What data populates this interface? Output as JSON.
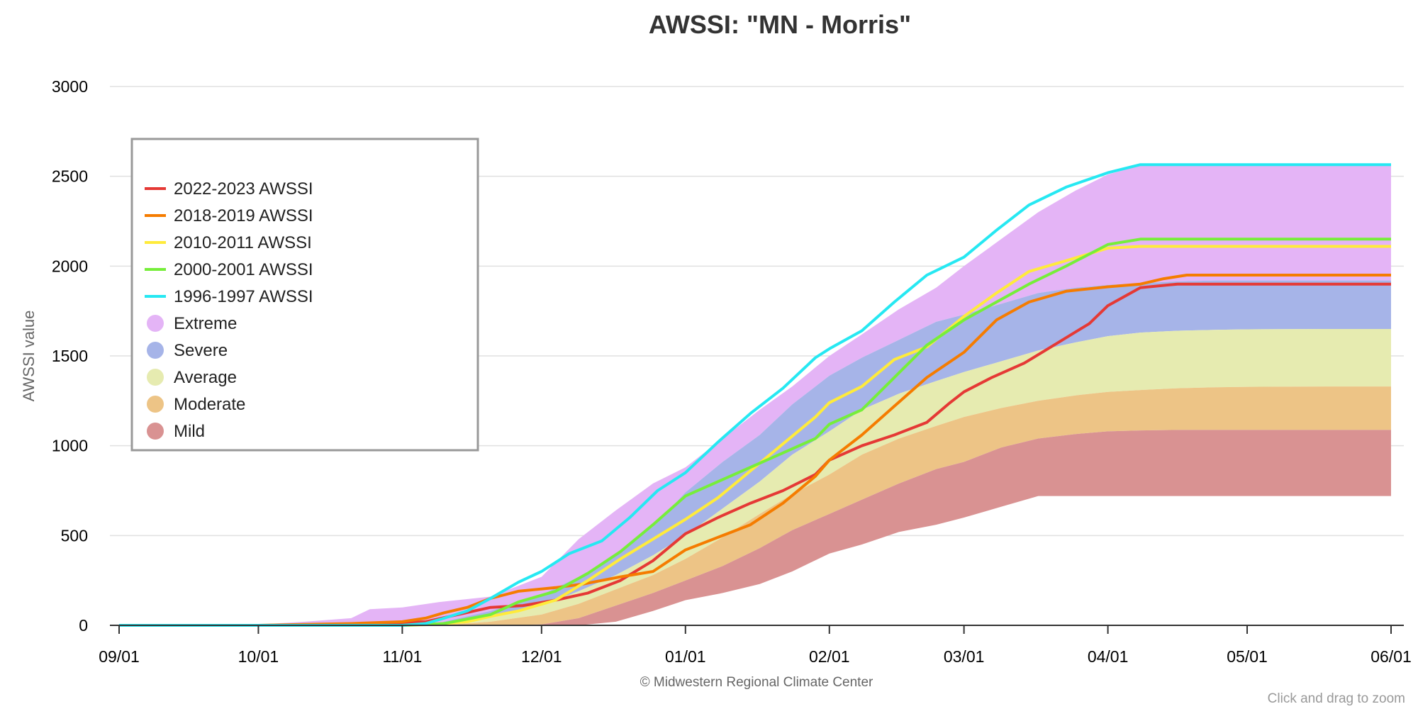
{
  "chart_data": {
    "type": "area",
    "title": "AWSSI: \"MN - Morris\"",
    "ylabel": "AWSSI value",
    "xlabel": "",
    "x_ticks": [
      "09/01",
      "10/01",
      "11/01",
      "12/01",
      "01/01",
      "02/01",
      "03/01",
      "04/01",
      "05/01",
      "06/01"
    ],
    "x_tick_days": [
      0,
      30,
      61,
      91,
      122,
      153,
      182,
      213,
      243,
      274
    ],
    "y_ticks": [
      0,
      500,
      1000,
      1500,
      2000,
      2500,
      3000
    ],
    "ylim": [
      0,
      3000
    ],
    "xlim_days": [
      0,
      274
    ],
    "grid": "horizontal",
    "legend_position": "upper-left",
    "credit": "© Midwestern Regional Climate Center",
    "zoom_hint": "Click and drag to zoom",
    "bands": [
      {
        "name": "Extreme",
        "color": "#e4b4f6",
        "x": [
          0,
          30,
          40,
          50,
          54,
          61,
          69,
          80,
          91,
          99,
          107,
          115,
          122,
          130,
          138,
          145,
          153,
          160,
          168,
          176,
          182,
          190,
          198,
          206,
          213,
          220,
          228,
          236,
          243,
          260,
          274
        ],
        "lower": [
          0,
          0,
          0,
          0,
          0,
          0,
          15,
          80,
          170,
          270,
          390,
          550,
          740,
          910,
          1060,
          1230,
          1390,
          1490,
          1590,
          1690,
          1730,
          1790,
          1850,
          1880,
          1895,
          1905,
          1915,
          1920,
          1920,
          1920,
          1920
        ],
        "upper": [
          0,
          5,
          20,
          40,
          90,
          100,
          130,
          160,
          270,
          480,
          640,
          790,
          880,
          1040,
          1200,
          1330,
          1500,
          1620,
          1760,
          1880,
          2000,
          2150,
          2300,
          2420,
          2510,
          2560,
          2565,
          2565,
          2565,
          2565,
          2565
        ]
      },
      {
        "name": "Severe",
        "color": "#a6b4e8",
        "x": [
          0,
          30,
          40,
          50,
          54,
          61,
          69,
          80,
          91,
          99,
          107,
          115,
          122,
          130,
          138,
          145,
          153,
          160,
          168,
          176,
          182,
          190,
          198,
          206,
          213,
          220,
          228,
          236,
          243,
          260,
          274
        ],
        "lower": [
          0,
          0,
          0,
          0,
          0,
          0,
          5,
          50,
          110,
          190,
          280,
          390,
          500,
          650,
          800,
          950,
          1080,
          1200,
          1290,
          1360,
          1410,
          1470,
          1530,
          1575,
          1610,
          1630,
          1640,
          1645,
          1648,
          1650,
          1650
        ],
        "upper": [
          0,
          0,
          0,
          0,
          0,
          0,
          15,
          80,
          170,
          270,
          390,
          550,
          740,
          910,
          1060,
          1230,
          1390,
          1490,
          1590,
          1690,
          1730,
          1790,
          1850,
          1880,
          1895,
          1905,
          1915,
          1920,
          1920,
          1920,
          1920
        ]
      },
      {
        "name": "Average",
        "color": "#e6ebb0",
        "x": [
          0,
          30,
          40,
          50,
          54,
          61,
          69,
          80,
          91,
          99,
          107,
          115,
          122,
          130,
          138,
          145,
          153,
          160,
          168,
          176,
          182,
          190,
          198,
          206,
          213,
          220,
          228,
          236,
          243,
          260,
          274
        ],
        "lower": [
          0,
          0,
          0,
          0,
          0,
          0,
          0,
          20,
          60,
          120,
          200,
          280,
          370,
          490,
          620,
          730,
          840,
          950,
          1040,
          1110,
          1160,
          1210,
          1250,
          1280,
          1300,
          1310,
          1320,
          1325,
          1328,
          1330,
          1330
        ],
        "upper": [
          0,
          0,
          0,
          0,
          0,
          0,
          5,
          50,
          110,
          190,
          280,
          390,
          500,
          650,
          800,
          950,
          1080,
          1200,
          1290,
          1360,
          1410,
          1470,
          1530,
          1575,
          1610,
          1630,
          1640,
          1645,
          1648,
          1650,
          1650
        ]
      },
      {
        "name": "Moderate",
        "color": "#edc486",
        "x": [
          0,
          30,
          40,
          50,
          54,
          61,
          69,
          80,
          91,
          99,
          107,
          115,
          122,
          130,
          138,
          145,
          153,
          160,
          168,
          176,
          182,
          190,
          198,
          206,
          213,
          220,
          228,
          236,
          243,
          260,
          274
        ],
        "lower": [
          0,
          0,
          0,
          0,
          0,
          0,
          0,
          0,
          5,
          40,
          110,
          180,
          250,
          330,
          430,
          530,
          620,
          700,
          790,
          870,
          910,
          990,
          1040,
          1065,
          1080,
          1085,
          1088,
          1088,
          1088,
          1088,
          1088
        ],
        "upper": [
          0,
          0,
          0,
          0,
          0,
          0,
          0,
          20,
          60,
          120,
          200,
          280,
          370,
          490,
          620,
          730,
          840,
          950,
          1040,
          1110,
          1160,
          1210,
          1250,
          1280,
          1300,
          1310,
          1320,
          1325,
          1328,
          1330,
          1330
        ]
      },
      {
        "name": "Mild",
        "color": "#d99292",
        "x": [
          0,
          30,
          40,
          50,
          54,
          61,
          69,
          80,
          91,
          99,
          107,
          115,
          122,
          130,
          138,
          145,
          153,
          160,
          168,
          176,
          182,
          190,
          198,
          206,
          213,
          220,
          228,
          236,
          243,
          260,
          274
        ],
        "lower": [
          0,
          0,
          0,
          0,
          0,
          0,
          0,
          0,
          0,
          0,
          20,
          80,
          140,
          180,
          230,
          300,
          400,
          450,
          520,
          560,
          600,
          660,
          720,
          720,
          720,
          720,
          720,
          720,
          720,
          720,
          720
        ],
        "upper": [
          0,
          0,
          0,
          0,
          0,
          0,
          0,
          0,
          5,
          40,
          110,
          180,
          250,
          330,
          430,
          530,
          620,
          700,
          790,
          870,
          910,
          990,
          1040,
          1065,
          1080,
          1085,
          1088,
          1088,
          1088,
          1088,
          1088
        ]
      }
    ],
    "series": [
      {
        "name": "2022-2023 AWSSI",
        "color": "#e53935",
        "x": [
          0,
          30,
          50,
          61,
          66,
          73,
          80,
          87,
          94,
          101,
          108,
          115,
          122,
          129,
          136,
          143,
          150,
          153,
          160,
          167,
          174,
          179,
          182,
          188,
          195,
          202,
          209,
          213,
          220,
          228,
          240,
          274
        ],
        "y": [
          0,
          0,
          5,
          15,
          20,
          60,
          100,
          110,
          140,
          180,
          250,
          360,
          510,
          600,
          680,
          750,
          840,
          920,
          1000,
          1060,
          1130,
          1240,
          1300,
          1380,
          1460,
          1570,
          1680,
          1780,
          1880,
          1900,
          1900,
          1900
        ]
      },
      {
        "name": "2018-2019 AWSSI",
        "color": "#f57c00",
        "x": [
          0,
          30,
          50,
          61,
          66,
          70,
          75,
          80,
          86,
          94,
          100,
          108,
          115,
          122,
          129,
          136,
          143,
          150,
          153,
          160,
          167,
          174,
          182,
          189,
          196,
          204,
          213,
          220,
          225,
          230,
          240,
          274
        ],
        "y": [
          0,
          0,
          10,
          20,
          40,
          70,
          100,
          150,
          190,
          210,
          230,
          270,
          300,
          420,
          490,
          560,
          680,
          830,
          920,
          1060,
          1220,
          1380,
          1520,
          1700,
          1800,
          1860,
          1885,
          1900,
          1930,
          1950,
          1950,
          1950
        ]
      },
      {
        "name": "2010-2011 AWSSI",
        "color": "#ffeb3b",
        "x": [
          0,
          30,
          61,
          68,
          75,
          80,
          86,
          94,
          101,
          108,
          115,
          122,
          129,
          136,
          143,
          150,
          153,
          160,
          167,
          174,
          182,
          189,
          196,
          204,
          213,
          220,
          230,
          240,
          274
        ],
        "y": [
          0,
          0,
          0,
          5,
          20,
          50,
          80,
          140,
          250,
          370,
          480,
          590,
          710,
          860,
          1010,
          1160,
          1240,
          1330,
          1480,
          1550,
          1720,
          1850,
          1970,
          2030,
          2100,
          2110,
          2110,
          2110,
          2110
        ]
      },
      {
        "name": "2000-2001 AWSSI",
        "color": "#76ee3a",
        "x": [
          0,
          30,
          61,
          70,
          80,
          86,
          94,
          101,
          108,
          115,
          122,
          129,
          136,
          143,
          150,
          153,
          160,
          167,
          174,
          182,
          189,
          196,
          204,
          213,
          220,
          225,
          240,
          274
        ],
        "y": [
          0,
          0,
          0,
          10,
          60,
          130,
          190,
          290,
          410,
          560,
          720,
          800,
          880,
          960,
          1040,
          1120,
          1200,
          1380,
          1560,
          1700,
          1800,
          1900,
          2000,
          2120,
          2150,
          2150,
          2150,
          2150
        ]
      },
      {
        "name": "1996-1997 AWSSI",
        "color": "#26e8f2",
        "x": [
          0,
          30,
          61,
          66,
          70,
          75,
          80,
          86,
          91,
          97,
          104,
          110,
          116,
          122,
          129,
          136,
          143,
          150,
          153,
          160,
          167,
          174,
          182,
          189,
          196,
          204,
          213,
          220,
          228,
          240,
          274
        ],
        "y": [
          0,
          0,
          0,
          10,
          40,
          80,
          150,
          240,
          300,
          400,
          470,
          600,
          750,
          850,
          1020,
          1180,
          1320,
          1490,
          1540,
          1640,
          1800,
          1950,
          2050,
          2200,
          2340,
          2440,
          2520,
          2565,
          2565,
          2565,
          2565
        ]
      }
    ]
  }
}
